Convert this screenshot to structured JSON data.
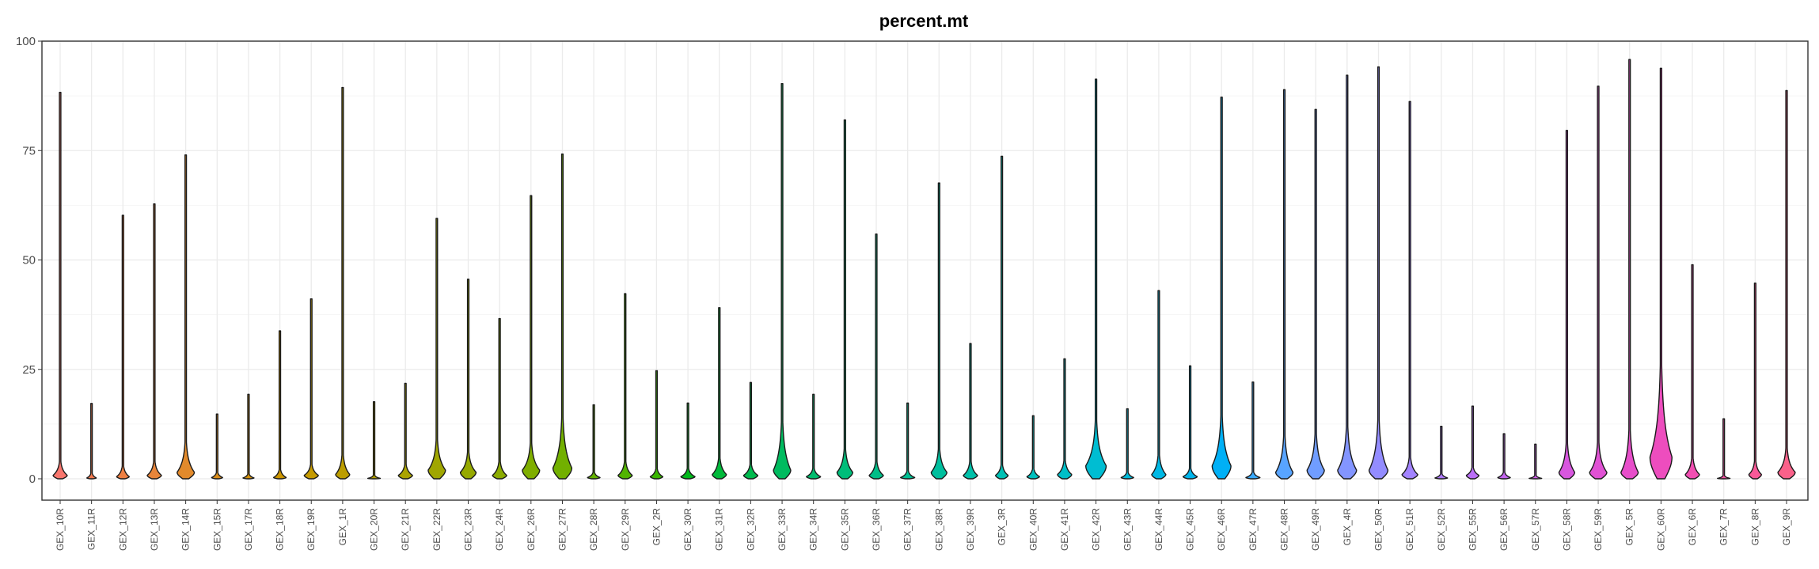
{
  "chart_data": {
    "type": "violin",
    "title": "percent.mt",
    "xlabel": "",
    "ylabel": "",
    "ylim": [
      -4.5,
      100
    ],
    "yticks": [
      0,
      25,
      50,
      75,
      100
    ],
    "grid": true,
    "legend": "none",
    "categories": [
      "GEX_10R",
      "GEX_11R",
      "GEX_12R",
      "GEX_13R",
      "GEX_14R",
      "GEX_15R",
      "GEX_17R",
      "GEX_18R",
      "GEX_19R",
      "GEX_1R",
      "GEX_20R",
      "GEX_21R",
      "GEX_22R",
      "GEX_23R",
      "GEX_24R",
      "GEX_26R",
      "GEX_27R",
      "GEX_28R",
      "GEX_29R",
      "GEX_2R",
      "GEX_30R",
      "GEX_31R",
      "GEX_32R",
      "GEX_33R",
      "GEX_34R",
      "GEX_35R",
      "GEX_36R",
      "GEX_37R",
      "GEX_38R",
      "GEX_39R",
      "GEX_3R",
      "GEX_40R",
      "GEX_41R",
      "GEX_42R",
      "GEX_43R",
      "GEX_44R",
      "GEX_45R",
      "GEX_46R",
      "GEX_47R",
      "GEX_48R",
      "GEX_49R",
      "GEX_4R",
      "GEX_50R",
      "GEX_51R",
      "GEX_52R",
      "GEX_55R",
      "GEX_56R",
      "GEX_57R",
      "GEX_58R",
      "GEX_59R",
      "GEX_5R",
      "GEX_60R",
      "GEX_6R",
      "GEX_7R",
      "GEX_8R",
      "GEX_9R"
    ],
    "series": [
      {
        "category": "GEX_10R",
        "color": "#F8766D",
        "max": 88.3,
        "mode": 0.8,
        "width": 0.45,
        "spread": 2.5
      },
      {
        "category": "GEX_11R",
        "color": "#F47A4F",
        "max": 17.2,
        "mode": 0.2,
        "width": 0.3,
        "spread": 1.0
      },
      {
        "category": "GEX_12R",
        "color": "#EE8043",
        "max": 60.2,
        "mode": 0.5,
        "width": 0.4,
        "spread": 2.0
      },
      {
        "category": "GEX_13R",
        "color": "#E8853A",
        "max": 62.8,
        "mode": 0.8,
        "width": 0.45,
        "spread": 2.5
      },
      {
        "category": "GEX_14R",
        "color": "#E28A2C",
        "max": 74.0,
        "mode": 1.5,
        "width": 0.55,
        "spread": 5.0
      },
      {
        "category": "GEX_15R",
        "color": "#DC8E1A",
        "max": 14.8,
        "mode": 0.3,
        "width": 0.35,
        "spread": 1.0
      },
      {
        "category": "GEX_17R",
        "color": "#D5920C",
        "max": 19.3,
        "mode": 0.2,
        "width": 0.35,
        "spread": 0.8
      },
      {
        "category": "GEX_18R",
        "color": "#CD9600",
        "max": 33.8,
        "mode": 0.3,
        "width": 0.4,
        "spread": 1.5
      },
      {
        "category": "GEX_19R",
        "color": "#C59A00",
        "max": 41.1,
        "mode": 0.8,
        "width": 0.45,
        "spread": 2.0
      },
      {
        "category": "GEX_1R",
        "color": "#BC9D00",
        "max": 89.4,
        "mode": 1.0,
        "width": 0.45,
        "spread": 3.5
      },
      {
        "category": "GEX_20R",
        "color": "#B3A000",
        "max": 17.6,
        "mode": 0.1,
        "width": 0.4,
        "spread": 0.6
      },
      {
        "category": "GEX_21R",
        "color": "#AAA300",
        "max": 21.8,
        "mode": 0.8,
        "width": 0.45,
        "spread": 2.0
      },
      {
        "category": "GEX_22R",
        "color": "#A0A600",
        "max": 59.5,
        "mode": 2.0,
        "width": 0.55,
        "spread": 5.0
      },
      {
        "category": "GEX_23R",
        "color": "#96A900",
        "max": 45.6,
        "mode": 1.5,
        "width": 0.5,
        "spread": 3.5
      },
      {
        "category": "GEX_24R",
        "color": "#8BAB00",
        "max": 36.6,
        "mode": 0.8,
        "width": 0.45,
        "spread": 2.5
      },
      {
        "category": "GEX_26R",
        "color": "#7FAE00",
        "max": 64.7,
        "mode": 2.0,
        "width": 0.55,
        "spread": 4.5
      },
      {
        "category": "GEX_27R",
        "color": "#72B000",
        "max": 74.2,
        "mode": 2.5,
        "width": 0.6,
        "spread": 8.0
      },
      {
        "category": "GEX_28R",
        "color": "#63B200",
        "max": 16.9,
        "mode": 0.3,
        "width": 0.4,
        "spread": 1.0
      },
      {
        "category": "GEX_29R",
        "color": "#51B400",
        "max": 42.3,
        "mode": 0.8,
        "width": 0.45,
        "spread": 2.5
      },
      {
        "category": "GEX_2R",
        "color": "#39B600",
        "max": 24.7,
        "mode": 0.5,
        "width": 0.4,
        "spread": 1.5
      },
      {
        "category": "GEX_30R",
        "color": "#00B81A",
        "max": 17.3,
        "mode": 0.5,
        "width": 0.45,
        "spread": 1.5
      },
      {
        "category": "GEX_31R",
        "color": "#00B93A",
        "max": 39.1,
        "mode": 1.0,
        "width": 0.45,
        "spread": 3.0
      },
      {
        "category": "GEX_32R",
        "color": "#00BA4E",
        "max": 22.0,
        "mode": 0.8,
        "width": 0.45,
        "spread": 2.0
      },
      {
        "category": "GEX_33R",
        "color": "#00BB5F",
        "max": 90.3,
        "mode": 2.0,
        "width": 0.55,
        "spread": 8.0
      },
      {
        "category": "GEX_34R",
        "color": "#00BC6D",
        "max": 19.3,
        "mode": 0.5,
        "width": 0.45,
        "spread": 1.5
      },
      {
        "category": "GEX_35R",
        "color": "#00BD7A",
        "max": 82.0,
        "mode": 1.5,
        "width": 0.5,
        "spread": 4.0
      },
      {
        "category": "GEX_36R",
        "color": "#00BE87",
        "max": 55.9,
        "mode": 0.8,
        "width": 0.45,
        "spread": 2.5
      },
      {
        "category": "GEX_37R",
        "color": "#00BF93",
        "max": 17.3,
        "mode": 0.3,
        "width": 0.45,
        "spread": 1.2
      },
      {
        "category": "GEX_38R",
        "color": "#00BF9E",
        "max": 67.6,
        "mode": 1.5,
        "width": 0.5,
        "spread": 4.0
      },
      {
        "category": "GEX_39R",
        "color": "#00C0A9",
        "max": 30.9,
        "mode": 0.8,
        "width": 0.45,
        "spread": 2.5
      },
      {
        "category": "GEX_3R",
        "color": "#00C0B4",
        "max": 73.7,
        "mode": 0.8,
        "width": 0.4,
        "spread": 2.0
      },
      {
        "category": "GEX_40R",
        "color": "#00C0BE",
        "max": 14.4,
        "mode": 0.5,
        "width": 0.4,
        "spread": 1.5
      },
      {
        "category": "GEX_41R",
        "color": "#00BFC8",
        "max": 27.4,
        "mode": 1.0,
        "width": 0.45,
        "spread": 2.5
      },
      {
        "category": "GEX_42R",
        "color": "#00BDD2",
        "max": 91.3,
        "mode": 3.0,
        "width": 0.65,
        "spread": 7.0
      },
      {
        "category": "GEX_43R",
        "color": "#00BBDB",
        "max": 16.0,
        "mode": 0.3,
        "width": 0.4,
        "spread": 1.0
      },
      {
        "category": "GEX_44R",
        "color": "#00B8E4",
        "max": 43.0,
        "mode": 1.0,
        "width": 0.45,
        "spread": 3.5
      },
      {
        "category": "GEX_45R",
        "color": "#00B5EC",
        "max": 25.8,
        "mode": 0.5,
        "width": 0.45,
        "spread": 1.5
      },
      {
        "category": "GEX_46R",
        "color": "#00B0F6",
        "max": 87.2,
        "mode": 3.0,
        "width": 0.6,
        "spread": 8.0
      },
      {
        "category": "GEX_47R",
        "color": "#3AAAFD",
        "max": 22.1,
        "mode": 0.3,
        "width": 0.45,
        "spread": 1.0
      },
      {
        "category": "GEX_48R",
        "color": "#58A4FF",
        "max": 88.9,
        "mode": 1.5,
        "width": 0.55,
        "spread": 6.0
      },
      {
        "category": "GEX_49R",
        "color": "#709DFF",
        "max": 84.4,
        "mode": 2.0,
        "width": 0.55,
        "spread": 6.0
      },
      {
        "category": "GEX_4R",
        "color": "#8395FF",
        "max": 92.2,
        "mode": 2.0,
        "width": 0.6,
        "spread": 7.0
      },
      {
        "category": "GEX_50R",
        "color": "#938CFF",
        "max": 94.1,
        "mode": 2.0,
        "width": 0.6,
        "spread": 8.0
      },
      {
        "category": "GEX_51R",
        "color": "#A283FF",
        "max": 86.2,
        "mode": 1.0,
        "width": 0.5,
        "spread": 3.0
      },
      {
        "category": "GEX_52R",
        "color": "#AF79FF",
        "max": 12.0,
        "mode": 0.2,
        "width": 0.4,
        "spread": 0.8
      },
      {
        "category": "GEX_55R",
        "color": "#BB6FF8",
        "max": 16.6,
        "mode": 0.8,
        "width": 0.4,
        "spread": 1.5
      },
      {
        "category": "GEX_56R",
        "color": "#C566F0",
        "max": 10.3,
        "mode": 0.3,
        "width": 0.4,
        "spread": 1.0
      },
      {
        "category": "GEX_57R",
        "color": "#CF5EE8",
        "max": 7.9,
        "mode": 0.1,
        "width": 0.4,
        "spread": 0.5
      },
      {
        "category": "GEX_58R",
        "color": "#D857DF",
        "max": 79.6,
        "mode": 1.5,
        "width": 0.5,
        "spread": 5.0
      },
      {
        "category": "GEX_59R",
        "color": "#E052D4",
        "max": 89.7,
        "mode": 1.5,
        "width": 0.55,
        "spread": 5.0
      },
      {
        "category": "GEX_5R",
        "color": "#E74ECA",
        "max": 95.8,
        "mode": 1.5,
        "width": 0.55,
        "spread": 7.0
      },
      {
        "category": "GEX_60R",
        "color": "#ED4DBE",
        "max": 93.8,
        "mode": 5.0,
        "width": 0.7,
        "spread": 14.0
      },
      {
        "category": "GEX_6R",
        "color": "#F24EB2",
        "max": 48.9,
        "mode": 1.0,
        "width": 0.45,
        "spread": 3.0
      },
      {
        "category": "GEX_7R",
        "color": "#F652A5",
        "max": 13.7,
        "mode": 0.1,
        "width": 0.4,
        "spread": 0.5
      },
      {
        "category": "GEX_8R",
        "color": "#F95998",
        "max": 44.7,
        "mode": 1.0,
        "width": 0.4,
        "spread": 2.5
      },
      {
        "category": "GEX_9R",
        "color": "#FA618A",
        "max": 88.7,
        "mode": 1.5,
        "width": 0.55,
        "spread": 4.0
      }
    ]
  }
}
